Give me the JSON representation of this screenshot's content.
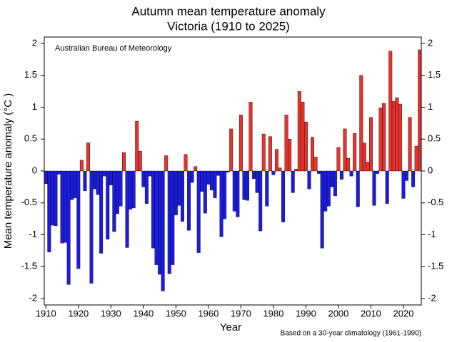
{
  "chart_data": {
    "type": "bar",
    "title": [
      "Autumn mean temperature anomaly",
      "Victoria (1910 to 2025)"
    ],
    "ylabel": "Mean temperature anomaly (°C )",
    "xlabel": "Year",
    "annotation": "Australian Bureau of Meteorology",
    "note": "Based on a 30-year climatology (1961-1990)",
    "positive_color": "#e8322c",
    "negative_color": "#1c1ce0",
    "grid": false,
    "xlim": [
      1909.5,
      2025.5
    ],
    "xticks": [
      1910,
      1920,
      1930,
      1940,
      1950,
      1960,
      1970,
      1980,
      1990,
      2000,
      2010,
      2020
    ],
    "ylim": [
      -2.1,
      2.1
    ],
    "yticks": [
      2,
      1.5,
      1,
      0.5,
      0,
      -0.5,
      -1,
      -1.5,
      -2
    ],
    "x": [
      1910,
      1911,
      1912,
      1913,
      1914,
      1915,
      1916,
      1917,
      1918,
      1919,
      1920,
      1921,
      1922,
      1923,
      1924,
      1925,
      1926,
      1927,
      1928,
      1929,
      1930,
      1931,
      1932,
      1933,
      1934,
      1935,
      1936,
      1937,
      1938,
      1939,
      1940,
      1941,
      1942,
      1943,
      1944,
      1945,
      1946,
      1947,
      1948,
      1949,
      1950,
      1951,
      1952,
      1953,
      1954,
      1955,
      1956,
      1957,
      1958,
      1959,
      1960,
      1961,
      1962,
      1963,
      1964,
      1965,
      1966,
      1967,
      1968,
      1969,
      1970,
      1971,
      1972,
      1973,
      1974,
      1975,
      1976,
      1977,
      1978,
      1979,
      1980,
      1981,
      1982,
      1983,
      1984,
      1985,
      1986,
      1987,
      1988,
      1989,
      1990,
      1991,
      1992,
      1993,
      1994,
      1995,
      1996,
      1997,
      1998,
      1999,
      2000,
      2001,
      2002,
      2003,
      2004,
      2005,
      2006,
      2007,
      2008,
      2009,
      2010,
      2011,
      2012,
      2013,
      2014,
      2015,
      2016,
      2017,
      2018,
      2019,
      2020,
      2021,
      2022,
      2023,
      2024,
      2025
    ],
    "values": [
      -0.2,
      -1.27,
      -0.85,
      -0.86,
      -0.05,
      -1.13,
      -1.12,
      -1.78,
      -0.45,
      -0.42,
      -1.53,
      0.17,
      -0.31,
      0.44,
      -1.76,
      -0.28,
      -0.37,
      -1.29,
      -0.08,
      -1.07,
      -0.22,
      -0.95,
      -0.67,
      -0.55,
      0.29,
      -1.2,
      -0.6,
      -0.58,
      0.78,
      0.31,
      -0.25,
      -0.51,
      -0.08,
      -1.21,
      -1.47,
      -1.62,
      -1.88,
      0.24,
      -1.61,
      -1.47,
      -0.69,
      -0.54,
      -0.79,
      0.26,
      -0.93,
      -0.18,
      0.07,
      -1.28,
      -0.32,
      -0.66,
      -0.21,
      -0.3,
      -0.42,
      -0.07,
      -1.03,
      -0.75,
      -0.02,
      0.66,
      -0.63,
      -0.72,
      0.88,
      -0.45,
      -0.46,
      1.08,
      -0.12,
      -0.34,
      -0.94,
      0.58,
      -0.55,
      0.54,
      -0.06,
      0.34,
      0.05,
      -0.8,
      0.88,
      0.5,
      -0.34,
      0.03,
      1.25,
      1.08,
      0.77,
      -0.28,
      0.53,
      0.22,
      -0.04,
      -1.21,
      -0.63,
      -0.55,
      -0.25,
      -0.39,
      0.37,
      -0.13,
      0.66,
      0.2,
      -0.08,
      0.59,
      -0.56,
      1.5,
      0.44,
      0.14,
      0.84,
      -0.54,
      -0.04,
      0.99,
      1.06,
      -0.51,
      1.88,
      1.09,
      1.15,
      1.05,
      -0.43,
      -0.15,
      0.84,
      -0.25,
      0.39,
      1.9
    ]
  }
}
